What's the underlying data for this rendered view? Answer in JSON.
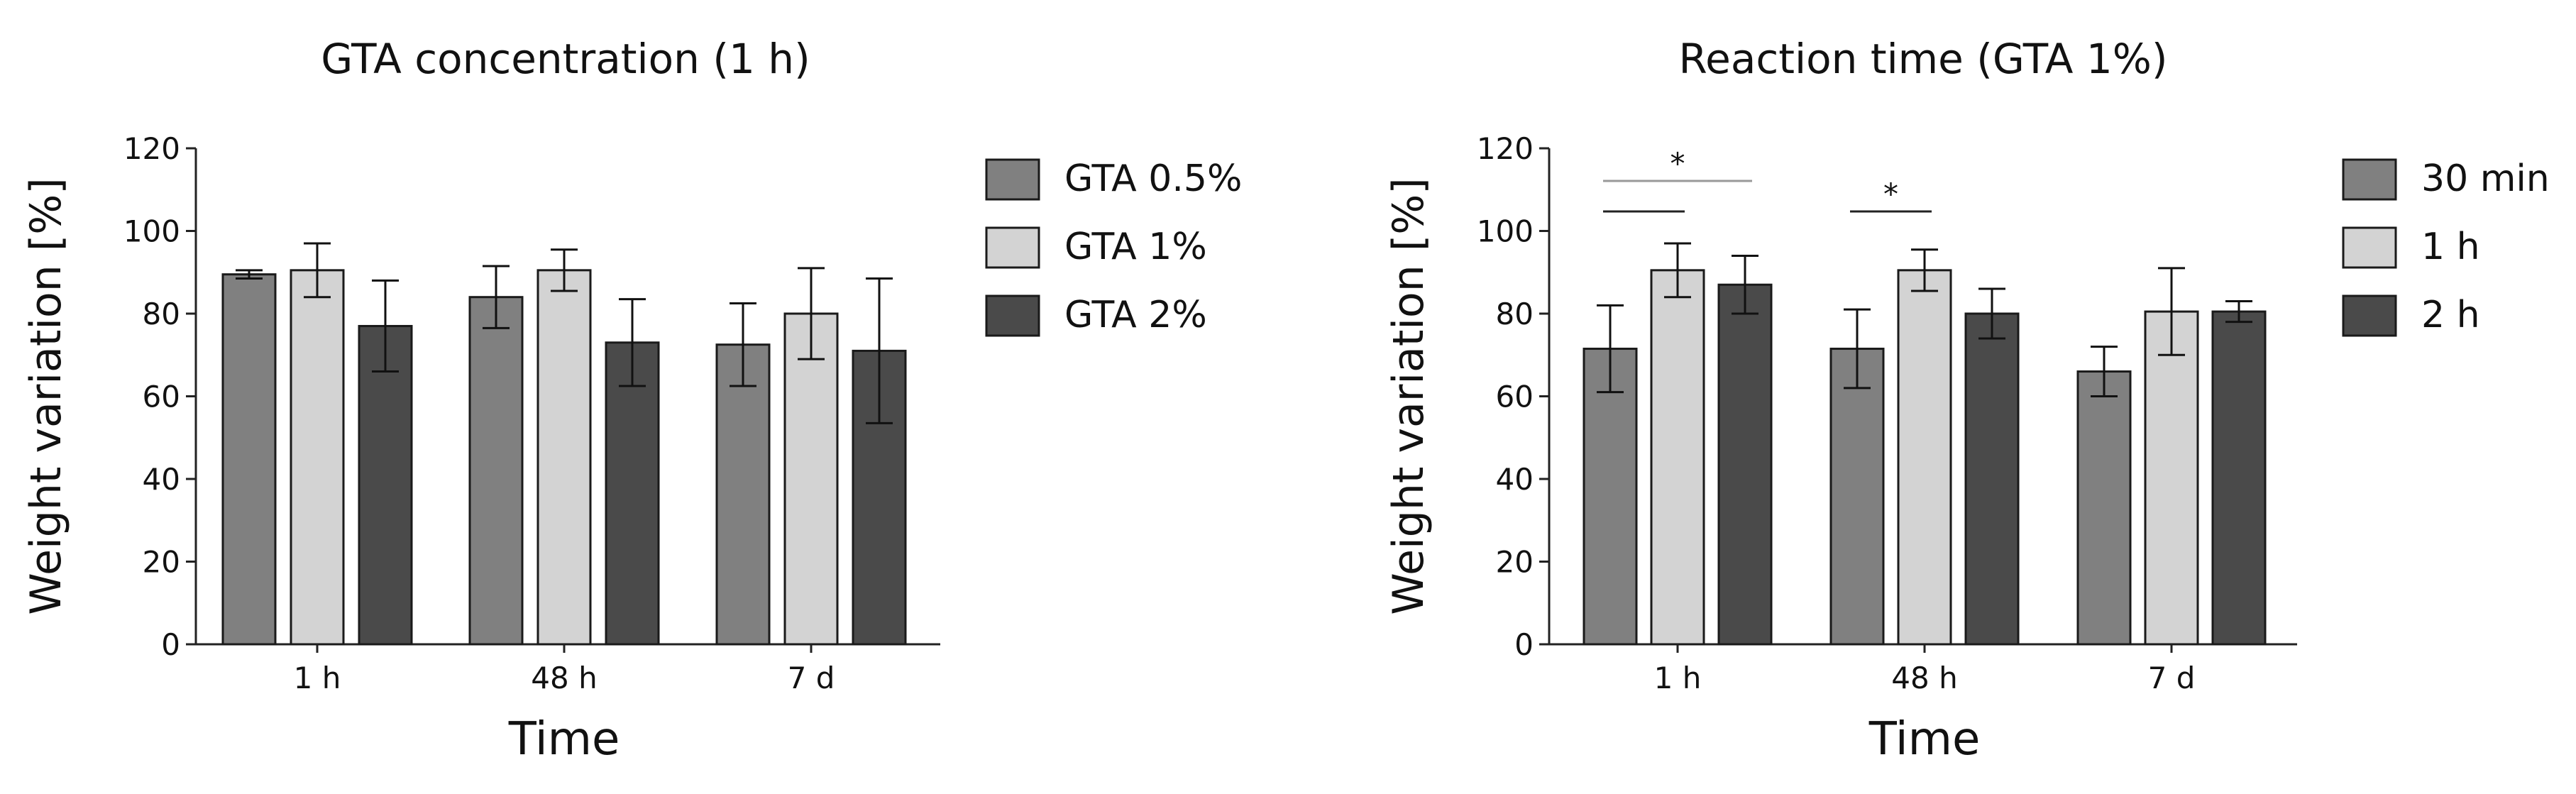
{
  "chart_data": [
    {
      "type": "bar",
      "title": "GTA concentration (1 h)",
      "xlabel": "Time",
      "ylabel": "Weight variation [%]",
      "ylim": [
        0,
        120
      ],
      "yticks": [
        0,
        20,
        40,
        60,
        80,
        100,
        120
      ],
      "grid": false,
      "legend_position": "right",
      "categories": [
        "1 h",
        "48 h",
        "7 d"
      ],
      "series": [
        {
          "name": "GTA 0.5%",
          "color": "#808080",
          "values": [
            89.5,
            84,
            72.5
          ],
          "errors": [
            1,
            7.5,
            10
          ]
        },
        {
          "name": "GTA 1%",
          "color": "#d3d3d3",
          "values": [
            90.5,
            90.5,
            80
          ],
          "errors": [
            6.5,
            5,
            11
          ]
        },
        {
          "name": "GTA 2%",
          "color": "#4a4a4a",
          "values": [
            77,
            73,
            71
          ],
          "errors": [
            11,
            10.5,
            17.5
          ]
        }
      ],
      "significance": []
    },
    {
      "type": "bar",
      "title": "Reaction time (GTA 1%)",
      "xlabel": "Time",
      "ylabel": "Weight variation [%]",
      "ylim": [
        0,
        120
      ],
      "yticks": [
        0,
        20,
        40,
        60,
        80,
        100,
        120
      ],
      "grid": false,
      "legend_position": "right",
      "categories": [
        "1 h",
        "48 h",
        "7 d"
      ],
      "series": [
        {
          "name": "30 min",
          "color": "#808080",
          "values": [
            71.5,
            71.5,
            66
          ],
          "errors": [
            10.5,
            9.5,
            6
          ]
        },
        {
          "name": "1 h",
          "color": "#d3d3d3",
          "values": [
            90.5,
            90.5,
            80.5
          ],
          "errors": [
            6.5,
            5,
            10.5
          ]
        },
        {
          "name": "2 h",
          "color": "#4a4a4a",
          "values": [
            87,
            80,
            80.5
          ],
          "errors": [
            7,
            6,
            2.5
          ]
        }
      ],
      "significance": [
        {
          "category": 0,
          "from_series": 0,
          "to_series": 2,
          "label": "*",
          "line_color": "#999999"
        },
        {
          "category": 0,
          "from_series": 0,
          "to_series": 1,
          "label": "",
          "line_color": "#222222"
        },
        {
          "category": 1,
          "from_series": 0,
          "to_series": 1,
          "label": "*",
          "line_color": "#222222"
        }
      ]
    }
  ]
}
